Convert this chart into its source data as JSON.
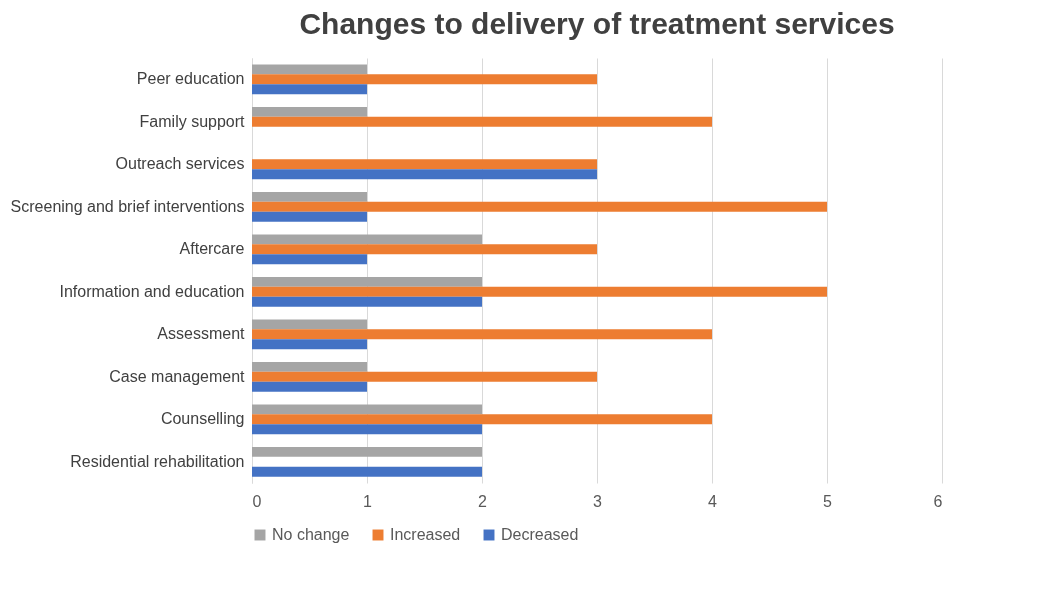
{
  "chart_data": {
    "type": "bar",
    "orientation": "horizontal",
    "title": "Changes to delivery of treatment services",
    "categories": [
      "Peer education",
      "Family support",
      "Outreach services",
      "Screening and brief interventions",
      "Aftercare",
      "Information and education",
      "Assessment",
      "Case management",
      "Counselling",
      "Residential rehabilitation"
    ],
    "series": [
      {
        "name": "No change",
        "color": "#a5a5a5",
        "values": [
          1,
          1,
          0,
          1,
          2,
          2,
          1,
          1,
          2,
          2
        ]
      },
      {
        "name": "Increased",
        "color": "#ed7d31",
        "values": [
          3,
          4,
          3,
          5,
          3,
          5,
          4,
          3,
          4,
          0
        ]
      },
      {
        "name": "Decreased",
        "color": "#4472c4",
        "values": [
          1,
          0,
          3,
          1,
          1,
          2,
          1,
          1,
          2,
          2
        ]
      }
    ],
    "xlim": [
      0,
      6
    ],
    "xticks": [
      0,
      1,
      2,
      3,
      4,
      5,
      6
    ],
    "grid": "x",
    "legend": "bottom"
  }
}
